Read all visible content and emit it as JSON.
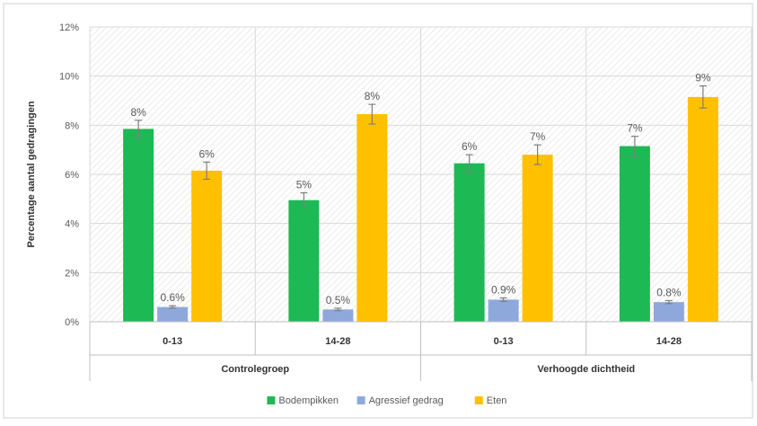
{
  "chart_data": {
    "type": "bar",
    "title": "",
    "xlabel": "",
    "ylabel": "Percentage aantal gedragingen",
    "ylim": [
      0,
      12
    ],
    "yticks": [
      "0%",
      "2%",
      "4%",
      "6%",
      "8%",
      "10%",
      "12%"
    ],
    "groups": [
      {
        "label": "Controlegroep",
        "categories": [
          "0-13",
          "14-28"
        ]
      },
      {
        "label": "Verhoogde dichtheid",
        "categories": [
          "0-13",
          "14-28"
        ]
      }
    ],
    "categories": [
      "0-13",
      "14-28",
      "0-13",
      "14-28"
    ],
    "series": [
      {
        "name": "Bodempikken",
        "color": "#1db954",
        "values": [
          7.85,
          4.95,
          6.45,
          7.15
        ],
        "errors": [
          0.35,
          0.3,
          0.35,
          0.4
        ],
        "labels": [
          "8%",
          "5%",
          "6%",
          "7%"
        ]
      },
      {
        "name": "Agressief gedrag",
        "color": "#8fa8dc",
        "values": [
          0.6,
          0.5,
          0.9,
          0.8
        ],
        "errors": [
          0.05,
          0.05,
          0.07,
          0.06
        ],
        "labels": [
          "0.6%",
          "0.5%",
          "0.9%",
          "0.8%"
        ]
      },
      {
        "name": "Eten",
        "color": "#ffc000",
        "values": [
          6.15,
          8.45,
          6.8,
          9.15
        ],
        "errors": [
          0.35,
          0.4,
          0.4,
          0.45
        ],
        "labels": [
          "6%",
          "8%",
          "7%",
          "9%"
        ]
      }
    ],
    "legend_position": "bottom",
    "grid": true
  }
}
